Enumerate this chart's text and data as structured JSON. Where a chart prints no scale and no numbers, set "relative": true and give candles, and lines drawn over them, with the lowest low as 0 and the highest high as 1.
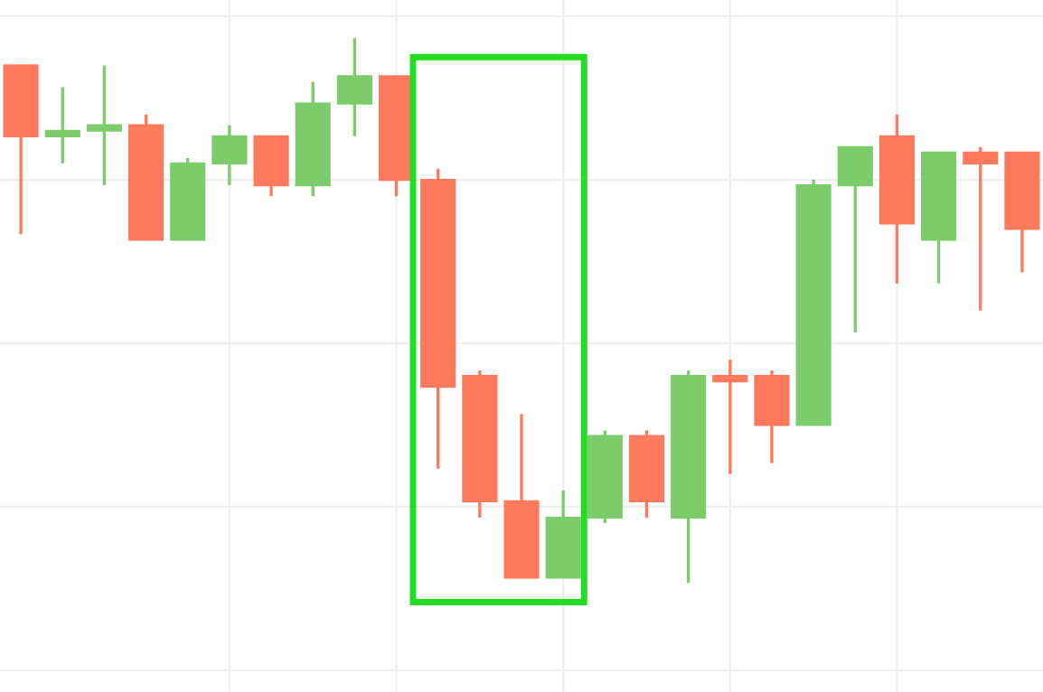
{
  "chart_data": {
    "type": "candlestick",
    "relative": true,
    "grid": true,
    "categories": [
      null,
      null,
      null,
      null,
      null,
      null,
      null,
      null,
      null,
      null,
      null,
      null,
      null,
      null,
      null,
      null,
      null,
      null,
      null,
      null,
      null,
      null,
      null,
      null,
      null
    ],
    "ohlc": [
      [
        0.95,
        0.95,
        0.64,
        0.82
      ],
      [
        0.82,
        0.91,
        0.77,
        0.83
      ],
      [
        0.83,
        0.95,
        0.73,
        0.84
      ],
      [
        0.84,
        0.86,
        0.63,
        0.63
      ],
      [
        0.63,
        0.78,
        0.63,
        0.77
      ],
      [
        0.77,
        0.84,
        0.73,
        0.82
      ],
      [
        0.82,
        0.82,
        0.71,
        0.73
      ],
      [
        0.73,
        0.92,
        0.71,
        0.88
      ],
      [
        0.88,
        1.0,
        0.82,
        0.93
      ],
      [
        0.93,
        0.93,
        0.71,
        0.74
      ],
      [
        0.74,
        0.76,
        0.21,
        0.36
      ],
      [
        0.38,
        0.39,
        0.12,
        0.15
      ],
      [
        0.15,
        0.31,
        0.01,
        0.01
      ],
      [
        0.01,
        0.17,
        0.01,
        0.12
      ],
      [
        0.12,
        0.28,
        0.11,
        0.27
      ],
      [
        0.27,
        0.28,
        0.12,
        0.15
      ],
      [
        0.12,
        0.39,
        0.0,
        0.38
      ],
      [
        0.38,
        0.41,
        0.2,
        0.37
      ],
      [
        0.38,
        0.39,
        0.22,
        0.29
      ],
      [
        0.29,
        0.74,
        0.29,
        0.73
      ],
      [
        0.73,
        0.8,
        0.46,
        0.8
      ],
      [
        0.82,
        0.86,
        0.55,
        0.66
      ],
      [
        0.63,
        0.79,
        0.55,
        0.79
      ],
      [
        0.79,
        0.8,
        0.5,
        0.77
      ],
      [
        0.79,
        0.79,
        0.57,
        0.65
      ]
    ],
    "colors": [
      "#ff7a5c",
      "#7ccc6c",
      "#7ccc6c",
      "#ff7a5c",
      "#7ccc6c",
      "#7ccc6c",
      "#ff7a5c",
      "#7ccc6c",
      "#7ccc6c",
      "#ff7a5c",
      "#ff7a5c",
      "#ff7a5c",
      "#ff7a5c",
      "#7ccc6c",
      "#7ccc6c",
      "#ff7a5c",
      "#7ccc6c",
      "#ff7a5c",
      "#ff7a5c",
      "#7ccc6c",
      "#7ccc6c",
      "#ff7a5c",
      "#7ccc6c",
      "#ff7a5c",
      "#ff7a5c"
    ]
  }
}
